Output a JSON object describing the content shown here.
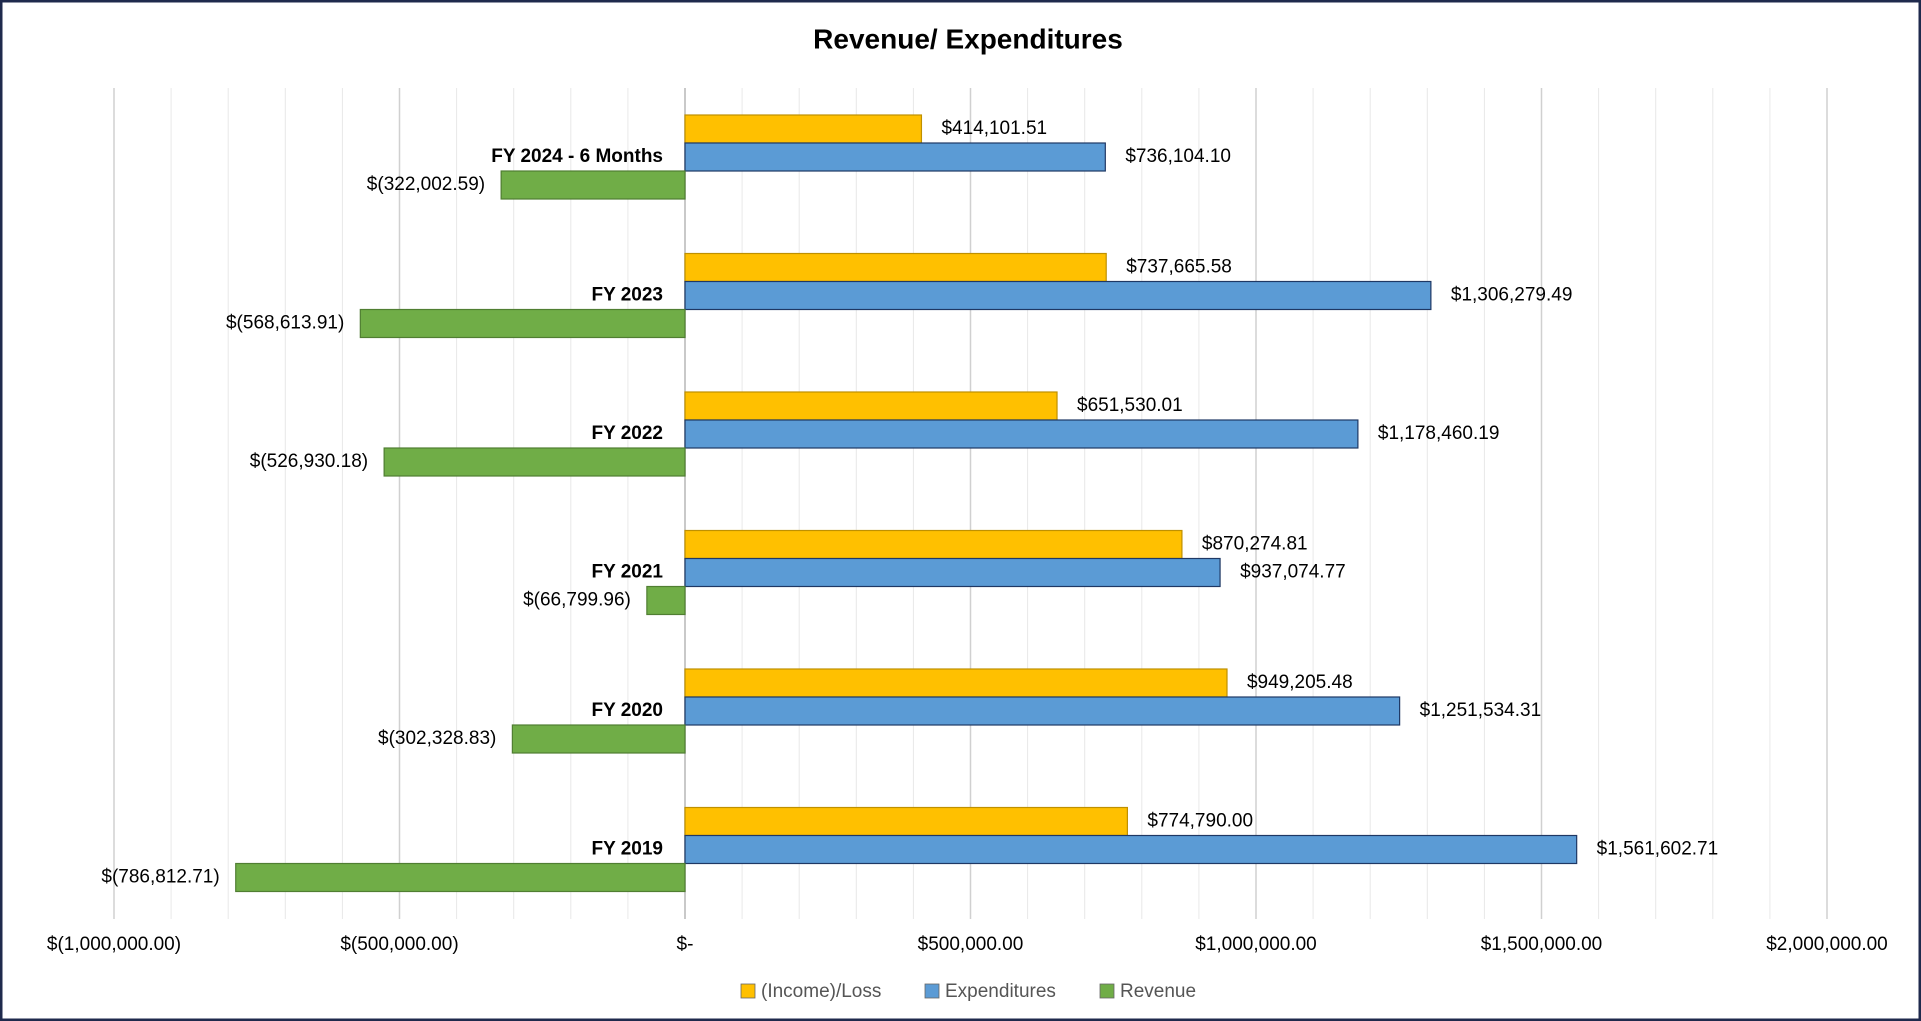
{
  "chart_data": {
    "type": "barh",
    "title": "Revenue/ Expenditures",
    "categories": [
      "FY 2024 - 6 Months",
      "FY 2023",
      "FY 2022",
      "FY 2021",
      "FY 2020",
      "FY 2019"
    ],
    "series": [
      {
        "name": "(Income)/Loss",
        "color": "#ffc000",
        "values": [
          414101.51,
          737665.58,
          651530.01,
          870274.81,
          949205.48,
          774790.0
        ],
        "value_labels": [
          "$414,101.51",
          "$737,665.58",
          "$651,530.01",
          "$870,274.81",
          "$949,205.48",
          "$774,790.00"
        ]
      },
      {
        "name": "Expenditures",
        "color": "#5b9bd5",
        "values": [
          736104.1,
          1306279.49,
          1178460.19,
          937074.77,
          1251534.31,
          1561602.71
        ],
        "value_labels": [
          "$736,104.10",
          "$1,306,279.49",
          "$1,178,460.19",
          "$937,074.77",
          "$1,251,534.31",
          "$1,561,602.71"
        ]
      },
      {
        "name": "Revenue",
        "color": "#70ad47",
        "values": [
          -322002.59,
          -568613.91,
          -526930.18,
          -66799.96,
          -302328.83,
          -786812.71
        ],
        "value_labels": [
          "$(322,002.59)",
          "$(568,613.91)",
          "$(526,930.18)",
          "$(66,799.96)",
          "$(302,328.83)",
          "$(786,812.71)"
        ]
      }
    ],
    "xlim": [
      -1000000,
      2000000
    ],
    "xticks": [
      {
        "value": -1000000,
        "label": "$(1,000,000.00)"
      },
      {
        "value": -500000,
        "label": "$(500,000.00)"
      },
      {
        "value": 0,
        "label": "$-"
      },
      {
        "value": 500000,
        "label": "$500,000.00"
      },
      {
        "value": 1000000,
        "label": "$1,000,000.00"
      },
      {
        "value": 1500000,
        "label": "$1,500,000.00"
      },
      {
        "value": 2000000,
        "label": "$2,000,000.00"
      }
    ],
    "minor_grid_step": 100000,
    "grid": true,
    "legend": "bottom"
  }
}
